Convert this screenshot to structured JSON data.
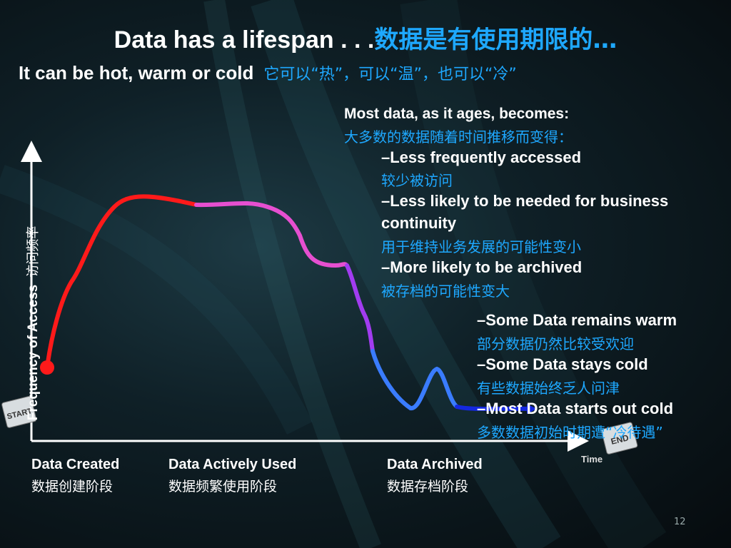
{
  "title": {
    "en": "Data has a lifespan . . .",
    "cn": "数据是有使用期限的…"
  },
  "subtitle": {
    "en": "It can be hot, warm or cold",
    "cn": "它可以“热”，可以“温”，也可以“冷”"
  },
  "bullets_top": [
    {
      "en": "Most data, as it ages, becomes:",
      "cn": "大多数的数据随着时间推移而变得："
    },
    {
      "en": "–Less frequently accessed",
      "cn": "较少被访问"
    },
    {
      "en": "–Less likely to be needed for business",
      "en2": "continuity",
      "cn": "用于维持业务发展的可能性变小"
    },
    {
      "en": "–More likely to be archived",
      "cn": "被存档的可能性变大"
    }
  ],
  "bullets_bottom": [
    {
      "en": "–Some Data remains warm",
      "cn": "部分数据仍然比较受欢迎"
    },
    {
      "en": "–Some Data stays cold",
      "cn": "有些数据始终乏人问津"
    },
    {
      "en": "–Most Data starts out cold",
      "cn": "多数数据初始时期遭“冷待遇”"
    }
  ],
  "axes": {
    "y_label_en": "Frequency of Access",
    "y_label_cn": "访问频率",
    "x_label": "Time",
    "start_badge": "START",
    "end_badge": "END"
  },
  "stages": [
    {
      "en": "Data Created",
      "cn": "数据创建阶段"
    },
    {
      "en": "Data Actively Used",
      "cn": "数据频繁使用阶段"
    },
    {
      "en": "Data Archived",
      "cn": "数据存档阶段"
    }
  ],
  "colors": {
    "hot": "#ff1a1a",
    "warm": "#e64fd0",
    "mid": "#a23cf0",
    "cool": "#3a7cff",
    "cold": "#1428e0",
    "accent_text": "#1ea8ff"
  },
  "page_number": "12"
}
